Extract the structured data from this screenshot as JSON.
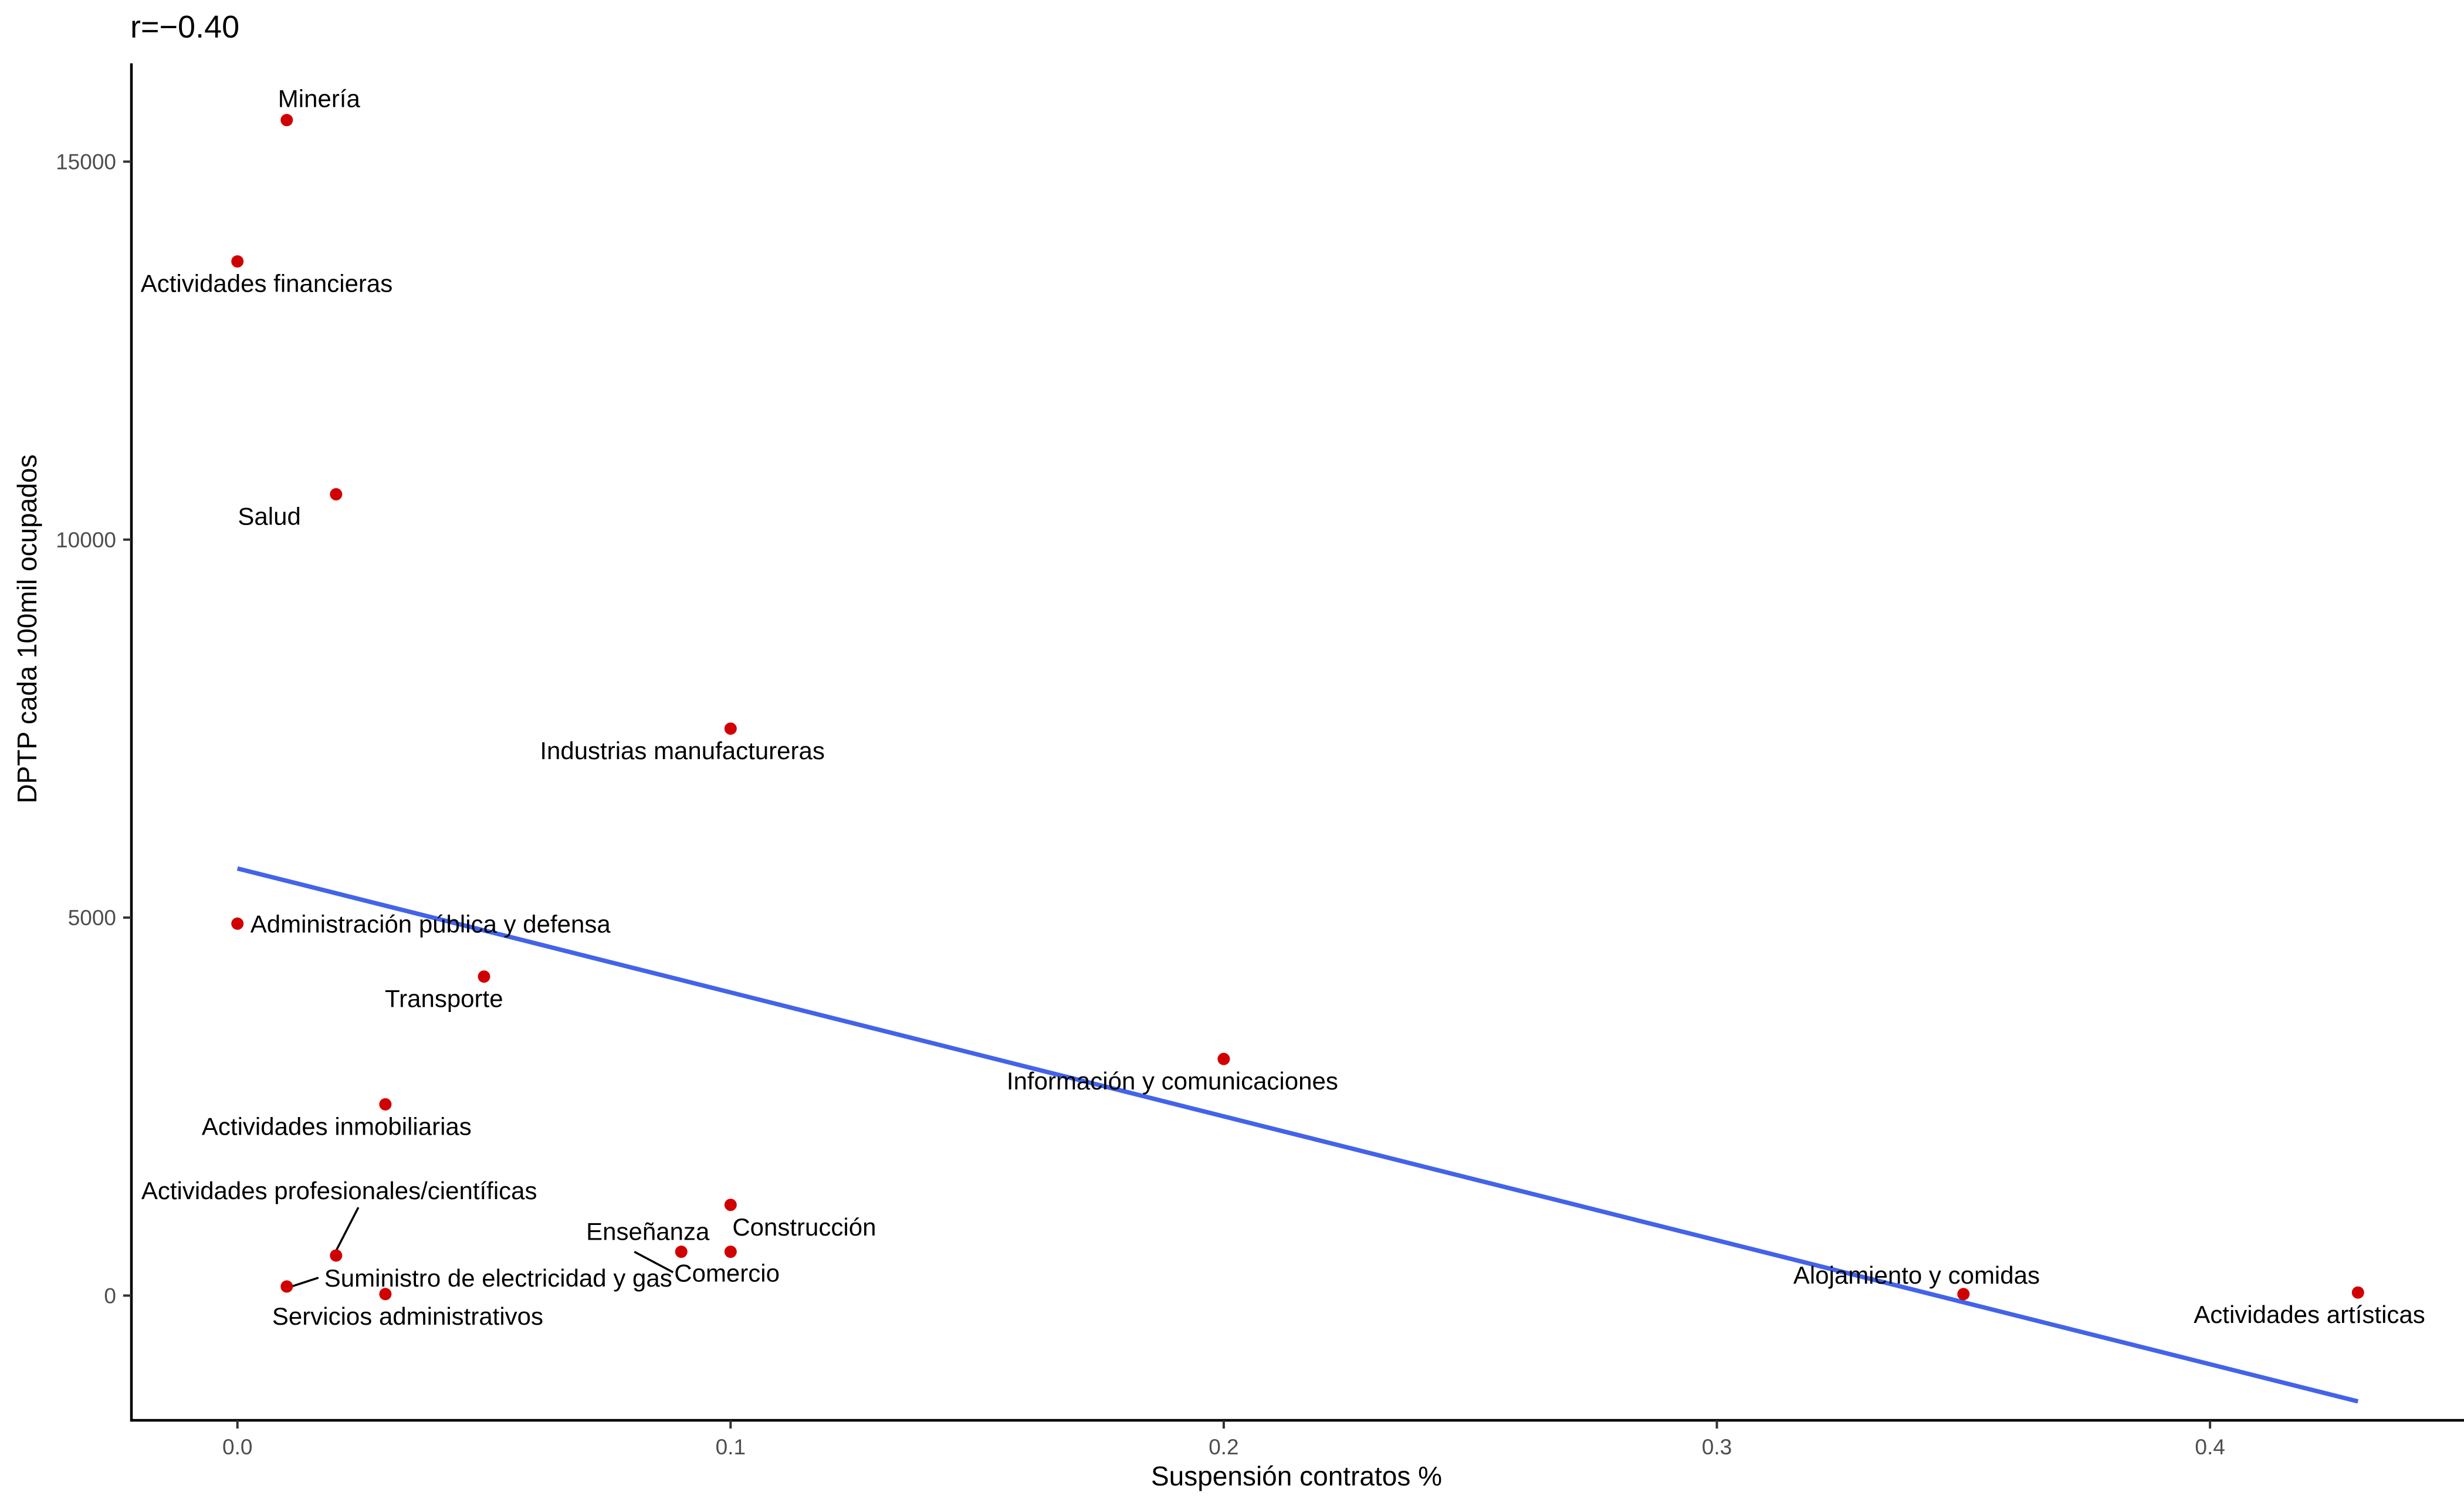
{
  "chart_data": {
    "type": "scatter",
    "title": "r=−0.40",
    "xlabel": "Suspensión contratos %",
    "ylabel": "DPTP cada 100mil ocupados",
    "xlim": [
      -0.0215,
      0.4515
    ],
    "ylim": [
      -1650,
      16300
    ],
    "x_ticks": [
      0.0,
      0.1,
      0.2,
      0.3,
      0.4
    ],
    "x_tick_labels": [
      "0.0",
      "0.1",
      "0.2",
      "0.3",
      "0.4"
    ],
    "y_ticks": [
      0,
      5000,
      10000,
      15000
    ],
    "y_tick_labels": [
      "0",
      "5000",
      "10000",
      "15000"
    ],
    "grid": false,
    "point_color": "#d10000",
    "trend_color": "#4363e8",
    "trend_line": {
      "x": [
        0.0,
        0.43
      ],
      "y": [
        5650,
        -1400
      ]
    },
    "points": [
      {
        "label": "Minería",
        "x": 0.01,
        "y": 15550
      },
      {
        "label": "Actividades financieras",
        "x": 0.0,
        "y": 13680
      },
      {
        "label": "Salud",
        "x": 0.02,
        "y": 10600
      },
      {
        "label": "Industrias manufactureras",
        "x": 0.1,
        "y": 7500
      },
      {
        "label": "Administración pública y defensa",
        "x": 0.0,
        "y": 4920
      },
      {
        "label": "Transporte",
        "x": 0.05,
        "y": 4220
      },
      {
        "label": "Información y comunicaciones",
        "x": 0.2,
        "y": 3130
      },
      {
        "label": "Actividades inmobiliarias",
        "x": 0.03,
        "y": 2530
      },
      {
        "label": "Construcción",
        "x": 0.1,
        "y": 1200
      },
      {
        "label": "Actividades profesionales/científicas",
        "x": 0.02,
        "y": 530
      },
      {
        "label": "Enseñanza",
        "x": 0.1,
        "y": 580
      },
      {
        "label": "Comercio",
        "x": 0.09,
        "y": 580
      },
      {
        "label": "Suministro de electricidad y gas",
        "x": 0.01,
        "y": 120
      },
      {
        "label": "Servicios administrativos",
        "x": 0.03,
        "y": 20
      },
      {
        "label": "Alojamiento y comidas",
        "x": 0.35,
        "y": 20
      },
      {
        "label": "Actividades artísticas",
        "x": 0.43,
        "y": 40
      }
    ]
  }
}
